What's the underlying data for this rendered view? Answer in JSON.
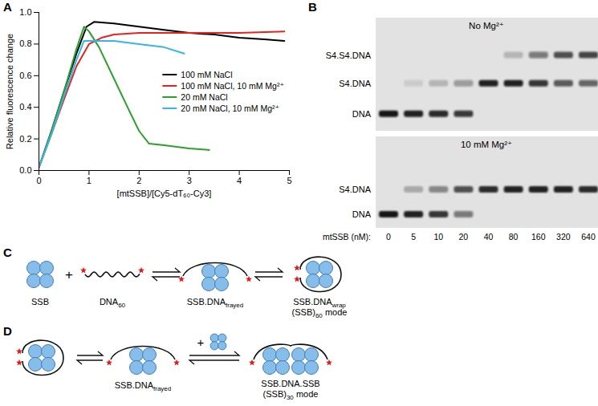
{
  "chart_data": {
    "type": "line",
    "panel_label": "A",
    "xlabel": "[mtSSB]/[Cy5-dT₆₀-Cy3]",
    "ylabel": "Relative fluorescence change",
    "xlim": [
      0,
      5
    ],
    "xticks": [
      0,
      1,
      2,
      3,
      4,
      5
    ],
    "ylim": [
      0,
      1
    ],
    "yticks": [
      {
        "value": 0,
        "label": "0.0"
      },
      {
        "value": 0.2,
        "label": "0.2"
      },
      {
        "value": 0.4,
        "label": "0.4"
      },
      {
        "value": 0.6,
        "label": "0.6"
      },
      {
        "value": 0.8,
        "label": "0.8"
      },
      {
        "value": 1,
        "label": "1.0"
      }
    ],
    "legend": "right",
    "series": [
      {
        "name": "100 mM NaCl",
        "color": "#000000",
        "x": [
          0,
          0.25,
          0.5,
          0.75,
          0.95,
          1.1,
          1.5,
          2,
          2.5,
          3,
          3.5,
          4,
          4.5,
          4.9
        ],
        "values": [
          0.02,
          0.25,
          0.5,
          0.74,
          0.91,
          0.94,
          0.93,
          0.91,
          0.89,
          0.87,
          0.86,
          0.84,
          0.83,
          0.82
        ]
      },
      {
        "name": "100 mM NaCl, 10 mM Mg²⁺",
        "color": "#e8231f",
        "x": [
          0,
          0.25,
          0.5,
          0.75,
          1.0,
          1.25,
          1.5,
          2,
          3,
          4,
          4.9
        ],
        "values": [
          0.02,
          0.23,
          0.45,
          0.66,
          0.8,
          0.84,
          0.86,
          0.87,
          0.87,
          0.87,
          0.88
        ]
      },
      {
        "name": "20 mM NaCl",
        "color": "#2ca02c",
        "x": [
          0,
          0.25,
          0.5,
          0.75,
          0.9,
          1.0,
          1.2,
          1.5,
          1.8,
          2.0,
          2.2,
          2.5,
          3.0,
          3.4
        ],
        "values": [
          0.02,
          0.25,
          0.5,
          0.77,
          0.91,
          0.88,
          0.78,
          0.58,
          0.38,
          0.25,
          0.17,
          0.16,
          0.14,
          0.13
        ]
      },
      {
        "name": "20 mM NaCl, 10 mM Mg²⁺",
        "color": "#35b6ea",
        "x": [
          0,
          0.25,
          0.5,
          0.75,
          0.9,
          1.0,
          1.5,
          2.0,
          2.5,
          2.9
        ],
        "values": [
          0.02,
          0.23,
          0.47,
          0.7,
          0.82,
          0.82,
          0.82,
          0.8,
          0.78,
          0.74
        ]
      }
    ]
  },
  "panels": {
    "B": {
      "panel_label": "B",
      "lane_title": "mtSSB (nM):",
      "lanes": [
        0,
        5,
        10,
        20,
        40,
        80,
        160,
        320,
        640
      ],
      "gels": [
        {
          "title": "No Mg²⁺",
          "bands": [
            {
              "label": "S4.S4.DNA",
              "intensity": [
                0,
                0,
                0,
                0,
                0,
                0.2,
                0.5,
                0.7,
                0.75
              ]
            },
            {
              "label": "S4.DNA",
              "intensity": [
                0,
                0.1,
                0.2,
                0.35,
                0.95,
                0.95,
                0.85,
                0.65,
                0.6
              ]
            },
            {
              "label": "DNA",
              "intensity": [
                1,
                0.95,
                0.9,
                0.8,
                0,
                0,
                0,
                0,
                0
              ]
            }
          ]
        },
        {
          "title": "10 mM Mg²⁺",
          "bands": [
            {
              "label": "S4.DNA",
              "intensity": [
                0,
                0.25,
                0.45,
                0.7,
                0.9,
                0.95,
                0.95,
                0.95,
                0.9
              ]
            },
            {
              "label": "DNA",
              "intensity": [
                1,
                0.95,
                0.85,
                0.5,
                0,
                0,
                0,
                0,
                0
              ]
            }
          ]
        }
      ]
    },
    "C": {
      "panel_label": "C",
      "plus": "+",
      "species": [
        {
          "lines": [
            [
              "SSB"
            ]
          ]
        },
        {
          "lines": [
            [
              "DNA",
              {
                "sub": "60"
              }
            ]
          ]
        },
        {
          "lines": [
            [
              "SSB.DNA",
              {
                "sub": "frayed"
              }
            ]
          ]
        },
        {
          "lines": [
            [
              "SSB.DNA",
              {
                "sub": "wrap"
              }
            ],
            [
              "(SSB)",
              {
                "sub": "60"
              },
              " mode"
            ]
          ]
        }
      ]
    },
    "D": {
      "panel_label": "D",
      "plus": "+",
      "species": [
        {
          "lines": []
        },
        {
          "lines": [
            [
              "SSB.DNA",
              {
                "sub": "frayed"
              }
            ]
          ]
        },
        {
          "lines": [
            [
              "SSB.DNA.SSB"
            ],
            [
              "(SSB)",
              {
                "sub": "30"
              },
              " mode"
            ]
          ]
        }
      ]
    }
  }
}
